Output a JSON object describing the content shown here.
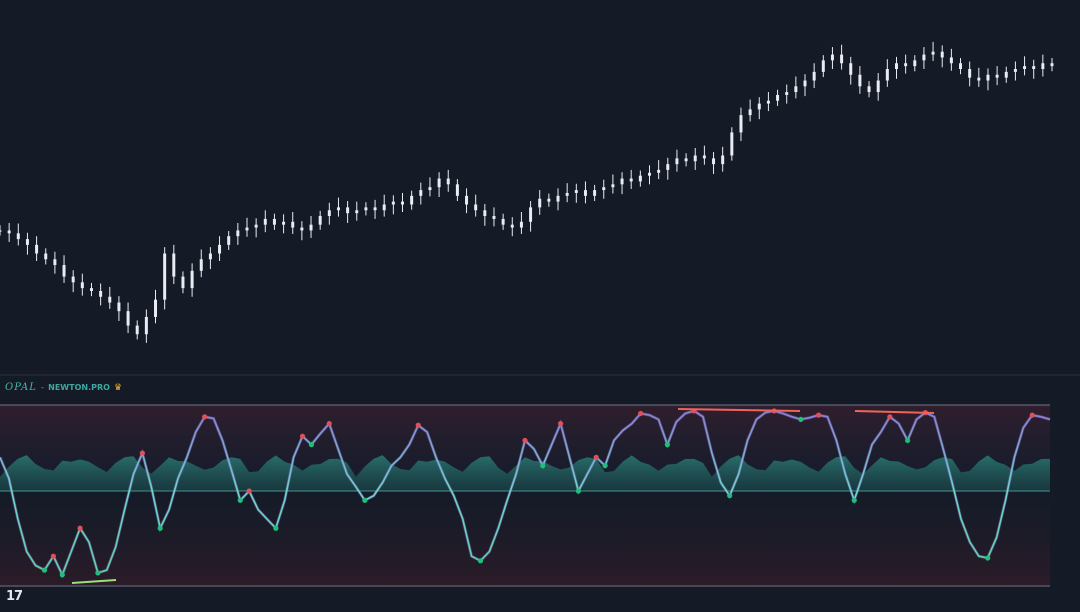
{
  "indicator": {
    "name": "OPAL",
    "separator": "-",
    "author": "NEWTON.PRO",
    "badge_icon": "crown-icon"
  },
  "branding": {
    "logo_icon": "tradingview-logo-icon"
  },
  "colors": {
    "background": "#151a27",
    "candle": "#e9ecf2",
    "oscillator_line": "#6fd6c8",
    "oscillator_line_alt": "#8b7fd9",
    "histogram": "#2c8f84",
    "bull_dot": "#1fbf7a",
    "bear_dot": "#e0505a",
    "pivot_dot": "#e6e6ea",
    "bands": "#6e7588",
    "divergence_bear": "#f0645a",
    "divergence_bull": "#9be07a"
  },
  "chart_data": [
    {
      "type": "candlestick",
      "title": "",
      "xlabel": "",
      "ylabel": "",
      "y_scale": "relative",
      "closes": [
        0.38,
        0.37,
        0.35,
        0.33,
        0.3,
        0.28,
        0.26,
        0.22,
        0.2,
        0.18,
        0.17,
        0.15,
        0.13,
        0.1,
        0.05,
        0.02,
        0.08,
        0.14,
        0.3,
        0.22,
        0.18,
        0.24,
        0.28,
        0.3,
        0.33,
        0.36,
        0.38,
        0.39,
        0.4,
        0.42,
        0.4,
        0.41,
        0.39,
        0.38,
        0.4,
        0.43,
        0.45,
        0.46,
        0.44,
        0.45,
        0.46,
        0.45,
        0.47,
        0.48,
        0.47,
        0.5,
        0.52,
        0.53,
        0.56,
        0.54,
        0.5,
        0.47,
        0.45,
        0.43,
        0.42,
        0.4,
        0.39,
        0.41,
        0.46,
        0.49,
        0.48,
        0.5,
        0.51,
        0.52,
        0.5,
        0.52,
        0.53,
        0.54,
        0.56,
        0.55,
        0.57,
        0.58,
        0.59,
        0.61,
        0.63,
        0.62,
        0.64,
        0.63,
        0.61,
        0.64,
        0.72,
        0.78,
        0.8,
        0.82,
        0.83,
        0.85,
        0.86,
        0.88,
        0.9,
        0.93,
        0.97,
        0.99,
        0.96,
        0.92,
        0.88,
        0.86,
        0.9,
        0.94,
        0.96,
        0.95,
        0.97,
        0.99,
        1.0,
        0.98,
        0.96,
        0.94,
        0.91,
        0.9,
        0.92,
        0.91,
        0.93,
        0.94,
        0.95,
        0.94,
        0.96,
        0.95
      ]
    },
    {
      "type": "oscillator",
      "title": "",
      "xlabel": "",
      "ylabel": "",
      "ylim": [
        -100,
        100
      ],
      "zero_line": 0,
      "upper_band": 95,
      "lower_band": -95,
      "line": [
        40,
        15,
        -30,
        -65,
        -80,
        -85,
        -70,
        -90,
        -65,
        -40,
        -55,
        -88,
        -85,
        -60,
        -20,
        20,
        45,
        5,
        -40,
        -20,
        15,
        40,
        70,
        88,
        86,
        60,
        25,
        -10,
        0,
        -20,
        -30,
        -40,
        -10,
        40,
        65,
        55,
        68,
        80,
        50,
        20,
        5,
        -10,
        -5,
        10,
        30,
        40,
        55,
        78,
        70,
        40,
        15,
        -5,
        -30,
        -70,
        -75,
        -65,
        -40,
        -10,
        20,
        60,
        50,
        30,
        55,
        80,
        40,
        0,
        20,
        40,
        30,
        60,
        72,
        80,
        92,
        90,
        85,
        55,
        82,
        92,
        95,
        88,
        45,
        10,
        -5,
        20,
        60,
        85,
        93,
        95,
        92,
        88,
        85,
        87,
        90,
        88,
        60,
        20,
        -10,
        20,
        55,
        70,
        88,
        80,
        60,
        85,
        93,
        88,
        50,
        10,
        -30,
        -55,
        -70,
        -72,
        -50,
        -10,
        40,
        75,
        90,
        88,
        85
      ]
    }
  ]
}
